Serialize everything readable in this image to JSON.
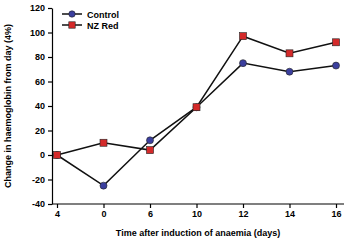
{
  "chart_data": {
    "type": "line",
    "x_label": "Time after induction of anaemia (days)",
    "y_label": "Change in haemoglobin from day (4%)",
    "categories": [
      "4",
      "0",
      "6",
      "10",
      "12",
      "14",
      "16"
    ],
    "series": [
      {
        "name": "Control",
        "color": "#3b3f9e",
        "marker": "circle",
        "values": [
          0,
          -25,
          12,
          39,
          75,
          68,
          73
        ]
      },
      {
        "name": "NZ Red",
        "color": "#d42a2a",
        "marker": "square",
        "values": [
          0,
          10,
          4,
          39,
          97,
          83,
          92
        ]
      }
    ],
    "ylim": [
      -40,
      120
    ],
    "yticks": [
      -40,
      -20,
      0,
      20,
      40,
      60,
      80,
      100,
      120
    ],
    "grid": false,
    "legend": "upper left"
  }
}
